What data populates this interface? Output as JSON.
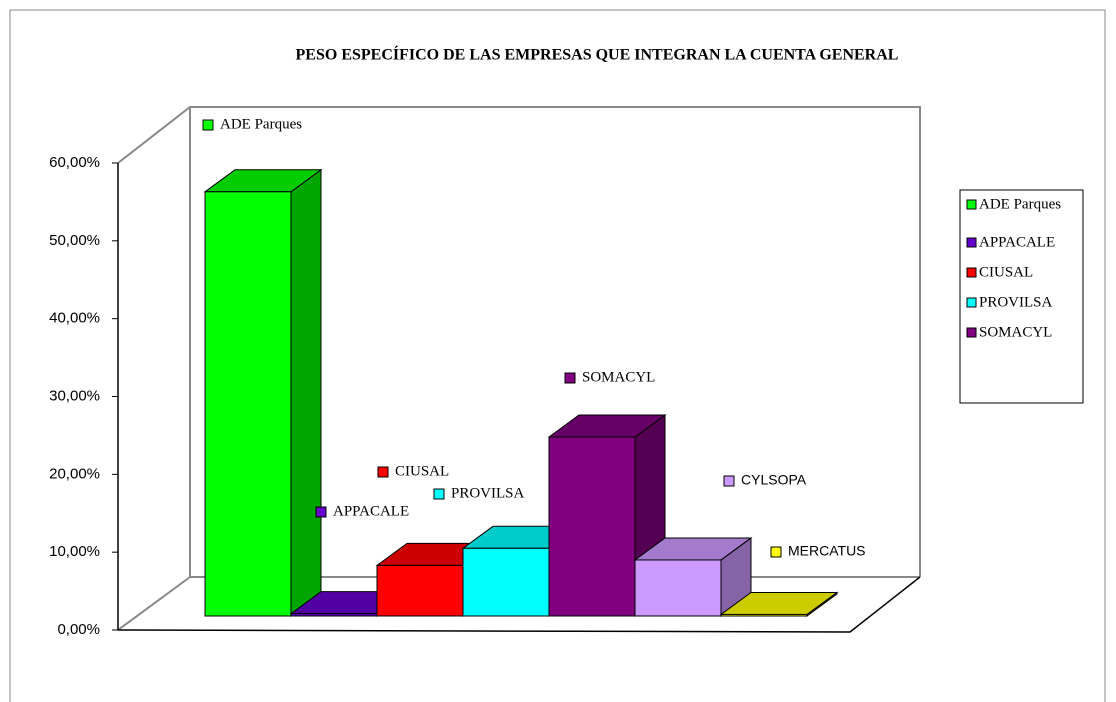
{
  "chart_data": {
    "type": "bar3d",
    "title": "PESO ESPECÍFICO DE LAS EMPRESAS QUE INTEGRAN LA CUENTA GENERAL",
    "categories": [
      "ADE Parques",
      "APPACALE",
      "CIUSAL",
      "PROVILSA",
      "SOMACYL",
      "CYLSOPA",
      "MERCATUS"
    ],
    "values": [
      54.5,
      0.3,
      6.5,
      8.7,
      23,
      7.2,
      0.2
    ],
    "colors": [
      "#00ff00",
      "#6600cc",
      "#ff0000",
      "#00ffff",
      "#800080",
      "#cc99ff",
      "#ffff00"
    ],
    "ylim": [
      0,
      60
    ],
    "yticks": [
      {
        "value": 0,
        "label": "0,00%"
      },
      {
        "value": 10,
        "label": "10,00%"
      },
      {
        "value": 20,
        "label": "20,00%"
      },
      {
        "value": 30,
        "label": "30,00%"
      },
      {
        "value": 40,
        "label": "40,00%"
      },
      {
        "value": 50,
        "label": "50,00%"
      },
      {
        "value": 60,
        "label": "60,00%"
      }
    ],
    "legend": [
      "ADE Parques",
      "APPACALE",
      "CIUSAL",
      "PROVILSA",
      "SOMACYL"
    ],
    "grid": false
  }
}
